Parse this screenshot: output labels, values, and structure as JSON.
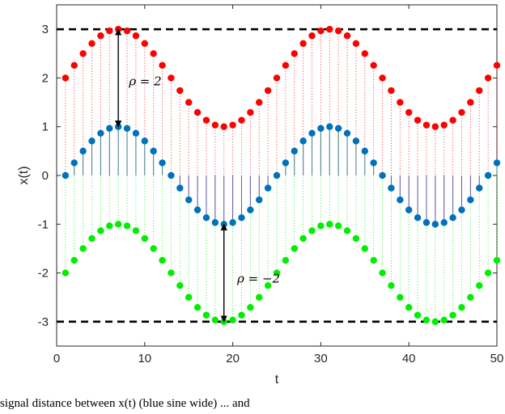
{
  "chart_data": {
    "type": "scatter",
    "xlabel": "t",
    "ylabel": "x(t)",
    "xlim": [
      0,
      50
    ],
    "ylim": [
      -3.5,
      3.5
    ],
    "xticks": [
      0,
      10,
      20,
      30,
      40,
      50
    ],
    "yticks": [
      -3,
      -2,
      -1,
      0,
      1,
      2,
      3
    ],
    "grid": false,
    "period": 24,
    "t_start": 1,
    "t_end": 50,
    "series": [
      {
        "role": "upper",
        "offset": 2,
        "color": "#ff0000",
        "stem_style": "dotted",
        "stem_to": "base"
      },
      {
        "role": "base",
        "offset": 0,
        "color": "#0072bd",
        "stem_style": "solid",
        "stem_color": "#5a5aa8",
        "stem_to": "zero"
      },
      {
        "role": "lower",
        "offset": -2,
        "color": "#00ee00",
        "stem_style": "dotted",
        "stem_to": "base"
      }
    ],
    "reference_lines": [
      {
        "y": 3,
        "style": "dashed",
        "color": "#000000"
      },
      {
        "y": -3,
        "style": "dashed",
        "color": "#000000"
      }
    ],
    "annotations": [
      {
        "text": "ρ = 2",
        "arrow_x": 7,
        "arrow_from": 3,
        "arrow_to": 1,
        "label_x": 8.2,
        "label_y": 1.85
      },
      {
        "text": "ρ = −2",
        "arrow_x": 19,
        "arrow_from": -1,
        "arrow_to": -3,
        "label_x": 20.5,
        "label_y": -2.2
      }
    ]
  },
  "caption": "signal distance between x(t) (blue sine wide) ... and"
}
